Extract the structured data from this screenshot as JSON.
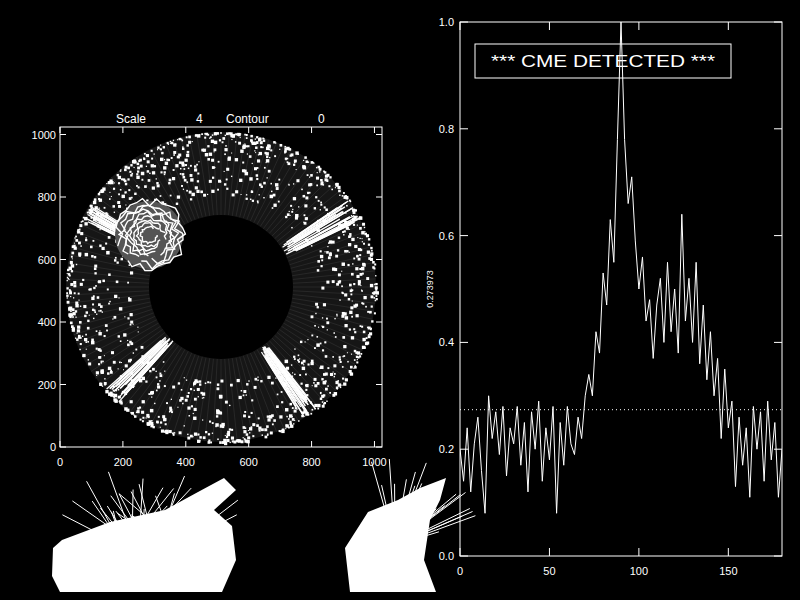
{
  "chart_data": [
    {
      "type": "image",
      "scale_label": "Scale",
      "scale": 4,
      "contour_label": "Contour",
      "contour": 0,
      "xlim": [
        0,
        1024
      ],
      "ylim": [
        0,
        1024
      ],
      "xticks": [
        0,
        200,
        400,
        600,
        800,
        1000
      ],
      "yticks": [
        0,
        200,
        400,
        600,
        800,
        1000
      ]
    },
    {
      "type": "line",
      "annotation": "*** CME DETECTED ***",
      "ylabel": "0.273973",
      "threshold": 0.273973,
      "color": "#ffffff",
      "line_style": "solid",
      "xlim": [
        0,
        180
      ],
      "ylim": [
        0,
        1
      ],
      "xticks": [
        0,
        50,
        100,
        150
      ],
      "yticks": [
        {
          "value": 0,
          "label": "0.0"
        },
        0.2,
        0.4,
        0.6,
        0.8,
        {
          "value": 1,
          "label": "1.0"
        }
      ],
      "x": [
        0,
        2,
        4,
        6,
        8,
        10,
        12,
        14,
        16,
        18,
        20,
        22,
        24,
        26,
        28,
        30,
        32,
        34,
        36,
        38,
        40,
        42,
        44,
        46,
        48,
        50,
        52,
        54,
        56,
        58,
        60,
        62,
        64,
        66,
        68,
        70,
        72,
        74,
        76,
        78,
        80,
        82,
        84,
        86,
        88,
        90,
        92,
        94,
        96,
        98,
        100,
        102,
        104,
        106,
        108,
        110,
        112,
        114,
        116,
        118,
        120,
        122,
        124,
        126,
        128,
        130,
        132,
        134,
        136,
        138,
        140,
        142,
        144,
        146,
        148,
        150,
        152,
        154,
        156,
        158,
        160,
        162,
        164,
        166,
        168,
        170,
        172,
        174,
        176,
        178,
        180
      ],
      "values": [
        0.2,
        0.14,
        0.24,
        0.12,
        0.21,
        0.26,
        0.16,
        0.08,
        0.3,
        0.22,
        0.27,
        0.19,
        0.28,
        0.15,
        0.24,
        0.21,
        0.28,
        0.17,
        0.25,
        0.12,
        0.27,
        0.2,
        0.29,
        0.14,
        0.24,
        0.18,
        0.28,
        0.08,
        0.25,
        0.17,
        0.28,
        0.21,
        0.19,
        0.26,
        0.22,
        0.3,
        0.34,
        0.3,
        0.42,
        0.38,
        0.53,
        0.47,
        0.63,
        0.55,
        0.78,
        1.0,
        0.78,
        0.66,
        0.71,
        0.59,
        0.5,
        0.56,
        0.44,
        0.48,
        0.37,
        0.47,
        0.52,
        0.4,
        0.55,
        0.42,
        0.5,
        0.38,
        0.64,
        0.44,
        0.52,
        0.4,
        0.55,
        0.36,
        0.47,
        0.33,
        0.42,
        0.3,
        0.37,
        0.22,
        0.35,
        0.24,
        0.29,
        0.13,
        0.26,
        0.17,
        0.24,
        0.11,
        0.28,
        0.2,
        0.27,
        0.14,
        0.29,
        0.18,
        0.25,
        0.11,
        0.2
      ]
    }
  ]
}
